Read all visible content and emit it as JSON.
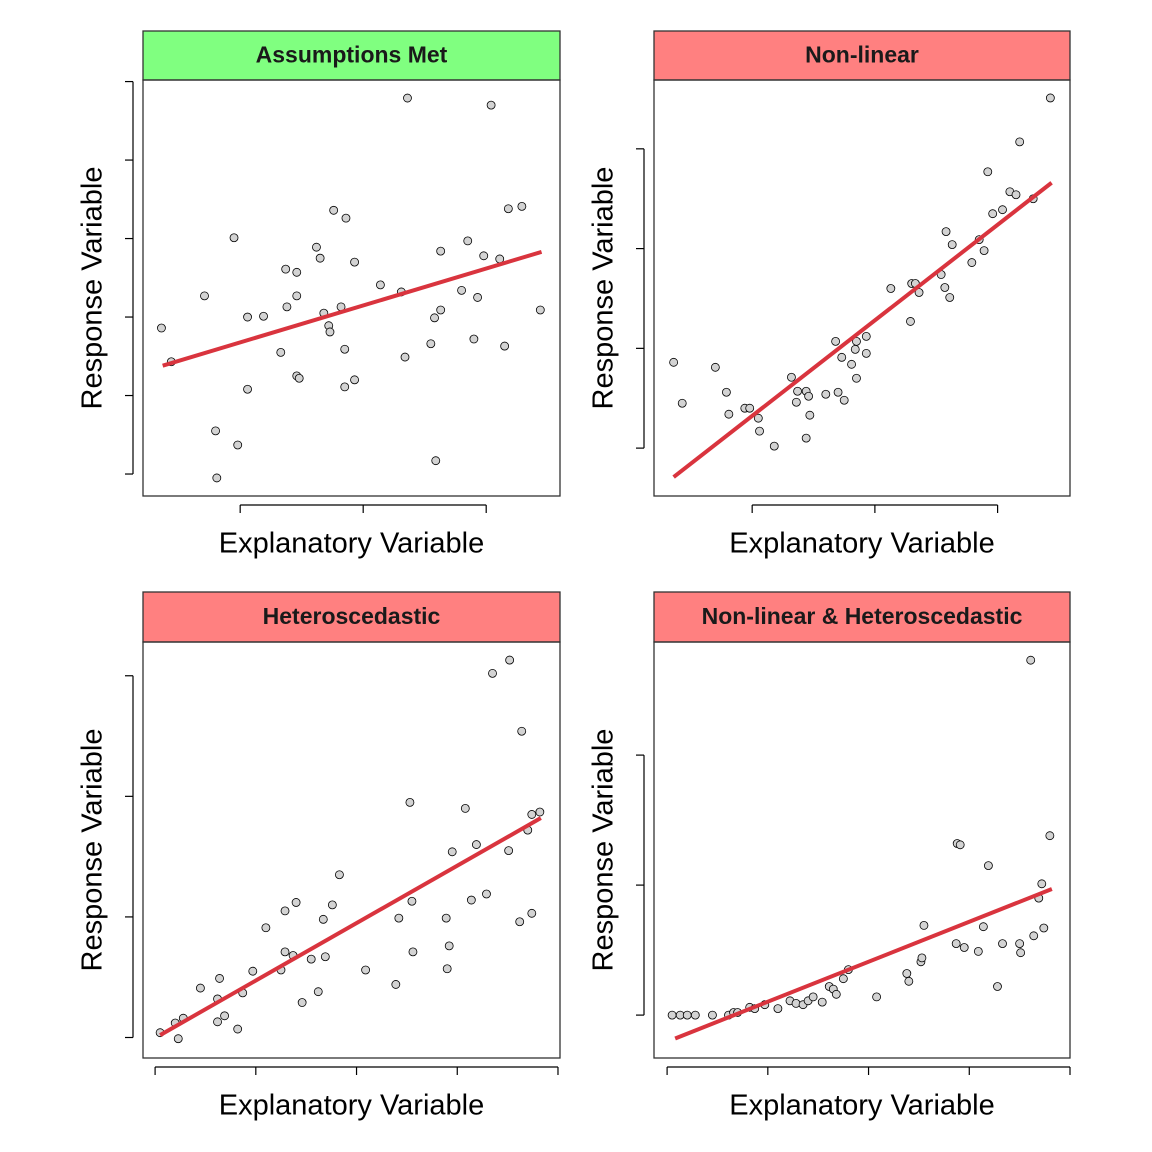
{
  "chart_data": [
    {
      "type": "scatter",
      "title": "Assumptions Met",
      "xlabel": "Explanatory Variable",
      "ylabel": "Response Variable",
      "strip_color": "#80ff80",
      "point_color": "#d3d3d3",
      "x": [
        0.36,
        0.44,
        0.71,
        0.8,
        0.81,
        0.95,
        0.98,
        1.06,
        1.06,
        1.19,
        1.33,
        1.37,
        1.38,
        1.46,
        1.46,
        1.46,
        1.48,
        1.62,
        1.65,
        1.68,
        1.72,
        1.73,
        1.76,
        1.82,
        1.85,
        1.85,
        1.86,
        1.93,
        1.93,
        2.14,
        2.31,
        2.34,
        2.36,
        2.55,
        2.58,
        2.59,
        2.63,
        2.63,
        2.8,
        2.85,
        2.9,
        2.93,
        2.98,
        3.04,
        3.11,
        3.15,
        3.18,
        3.29,
        3.44
      ],
      "values": [
        1.86,
        1.43,
        2.27,
        0.55,
        -0.05,
        3.01,
        0.37,
        2.0,
        1.08,
        2.01,
        1.55,
        2.61,
        2.13,
        2.57,
        2.27,
        1.25,
        1.22,
        2.89,
        2.75,
        2.05,
        1.89,
        1.81,
        3.36,
        2.13,
        1.59,
        1.11,
        3.26,
        1.2,
        2.7,
        2.41,
        2.32,
        1.49,
        4.79,
        1.66,
        1.99,
        0.17,
        2.09,
        2.84,
        2.34,
        2.97,
        1.72,
        2.25,
        2.78,
        4.7,
        2.74,
        1.63,
        3.38,
        3.41,
        2.09
      ],
      "fit": {
        "x": [
          0.37,
          3.45
        ],
        "values": [
          1.38,
          2.83
        ],
        "color": "#d9343e"
      },
      "xlim": [
        0.21,
        3.6
      ],
      "ylim": [
        -0.28,
        5.02
      ],
      "xticks": [
        1,
        2,
        3
      ],
      "yticks": [
        0,
        1,
        2,
        3,
        4,
        5
      ]
    },
    {
      "type": "scatter",
      "title": "Non-linear",
      "xlabel": "Explanatory Variable",
      "ylabel": "Response Variable",
      "strip_color": "#ff8080",
      "point_color": "#d3d3d3",
      "x": [
        0.36,
        0.43,
        0.7,
        0.79,
        0.81,
        0.94,
        0.98,
        1.05,
        1.06,
        1.18,
        1.32,
        1.36,
        1.37,
        1.44,
        1.46,
        1.44,
        1.47,
        1.6,
        1.68,
        1.7,
        1.73,
        1.75,
        1.81,
        1.84,
        1.85,
        1.85,
        1.93,
        1.93,
        2.13,
        2.29,
        2.3,
        2.33,
        2.36,
        2.54,
        2.57,
        2.58,
        2.61,
        2.63,
        2.79,
        2.85,
        2.89,
        2.92,
        2.96,
        3.04,
        3.1,
        3.15,
        3.18,
        3.29,
        3.43
      ],
      "values": [
        0.86,
        0.45,
        0.81,
        0.56,
        0.34,
        0.4,
        0.4,
        0.3,
        0.17,
        0.02,
        0.71,
        0.46,
        0.57,
        0.57,
        0.52,
        0.1,
        0.33,
        0.54,
        1.07,
        0.56,
        0.91,
        0.48,
        0.84,
        0.99,
        0.7,
        1.07,
        0.95,
        1.12,
        1.6,
        1.27,
        1.65,
        1.65,
        1.56,
        1.74,
        1.61,
        2.17,
        1.51,
        2.04,
        1.86,
        2.09,
        1.98,
        2.77,
        2.35,
        2.39,
        2.57,
        2.54,
        3.07,
        2.5,
        3.51
      ],
      "fit": {
        "x": [
          0.36,
          3.44
        ],
        "values": [
          -0.29,
          2.66
        ],
        "color": "#d9343e"
      },
      "xlim": [
        0.2,
        3.59
      ],
      "ylim": [
        -0.48,
        3.69
      ],
      "xticks": [
        1,
        2,
        3
      ],
      "yticks": [
        0,
        1,
        2,
        3
      ]
    },
    {
      "type": "scatter",
      "title": "Heteroscedastic",
      "xlabel": "Explanatory Variable",
      "ylabel": "Response Variable",
      "strip_color": "#ff8080",
      "point_color": "#d3d3d3",
      "x": [
        0.05,
        0.2,
        0.23,
        0.28,
        0.45,
        0.62,
        0.62,
        0.64,
        0.69,
        0.82,
        0.87,
        0.97,
        1.1,
        1.25,
        1.29,
        1.29,
        1.37,
        1.4,
        1.46,
        1.55,
        1.62,
        1.67,
        1.69,
        1.76,
        1.83,
        2.09,
        2.39,
        2.42,
        2.53,
        2.55,
        2.56,
        2.89,
        2.9,
        2.92,
        2.95,
        3.08,
        3.14,
        3.19,
        3.29,
        3.35,
        3.51,
        3.52,
        3.62,
        3.64,
        3.7,
        3.74,
        3.74,
        3.82
      ],
      "values": [
        0.04,
        0.12,
        -0.01,
        0.16,
        0.41,
        0.13,
        0.32,
        0.49,
        0.18,
        0.07,
        0.37,
        0.55,
        0.91,
        0.56,
        0.71,
        1.05,
        0.68,
        1.12,
        0.29,
        0.65,
        0.38,
        0.98,
        0.67,
        1.1,
        1.35,
        0.56,
        0.44,
        0.99,
        1.95,
        1.13,
        0.71,
        0.99,
        0.57,
        0.76,
        1.54,
        1.9,
        1.14,
        1.6,
        1.19,
        3.02,
        1.55,
        3.13,
        0.96,
        2.54,
        1.72,
        1.03,
        1.85,
        1.87
      ],
      "fit": {
        "x": [
          0.05,
          3.83
        ],
        "values": [
          0.02,
          1.82
        ],
        "color": "#d9343e"
      },
      "xlim": [
        -0.12,
        4.02
      ],
      "ylim": [
        -0.17,
        3.28
      ],
      "xticks": [
        0,
        1,
        2,
        3,
        4
      ],
      "yticks": [
        0,
        1,
        2,
        3
      ]
    },
    {
      "type": "scatter",
      "title": "Non-linear & Heteroscedastic",
      "xlabel": "Explanatory Variable",
      "ylabel": "Response Variable",
      "strip_color": "#ff8080",
      "point_color": "#d3d3d3",
      "x": [
        0.05,
        0.13,
        0.2,
        0.28,
        0.45,
        0.61,
        0.66,
        0.7,
        0.82,
        0.87,
        0.97,
        1.1,
        1.22,
        1.28,
        1.35,
        1.4,
        1.45,
        1.54,
        1.61,
        1.65,
        1.68,
        1.75,
        1.8,
        2.08,
        2.38,
        2.4,
        2.52,
        2.53,
        2.55,
        2.87,
        2.88,
        2.91,
        2.95,
        3.09,
        3.14,
        3.19,
        3.28,
        3.33,
        3.5,
        3.51,
        3.61,
        3.64,
        3.69,
        3.72,
        3.74,
        3.8
      ],
      "values": [
        0,
        0,
        0,
        0,
        0,
        0,
        0.02,
        0.02,
        0.06,
        0.05,
        0.08,
        0.05,
        0.11,
        0.09,
        0.08,
        0.11,
        0.14,
        0.1,
        0.22,
        0.2,
        0.16,
        0.28,
        0.35,
        0.14,
        0.32,
        0.26,
        0.41,
        0.44,
        0.69,
        0.55,
        1.32,
        1.31,
        0.52,
        0.49,
        0.68,
        1.15,
        0.22,
        0.55,
        0.55,
        0.48,
        2.73,
        0.61,
        0.9,
        1.01,
        0.67,
        1.38
      ],
      "fit": {
        "x": [
          0.08,
          3.82
        ],
        "values": [
          -0.18,
          0.97
        ],
        "color": "#d9343e"
      },
      "xlim": [
        -0.13,
        4.0
      ],
      "ylim": [
        -0.33,
        2.87
      ],
      "xticks": [
        0,
        1,
        2,
        3,
        4
      ],
      "yticks": [
        0,
        1,
        2
      ]
    }
  ]
}
